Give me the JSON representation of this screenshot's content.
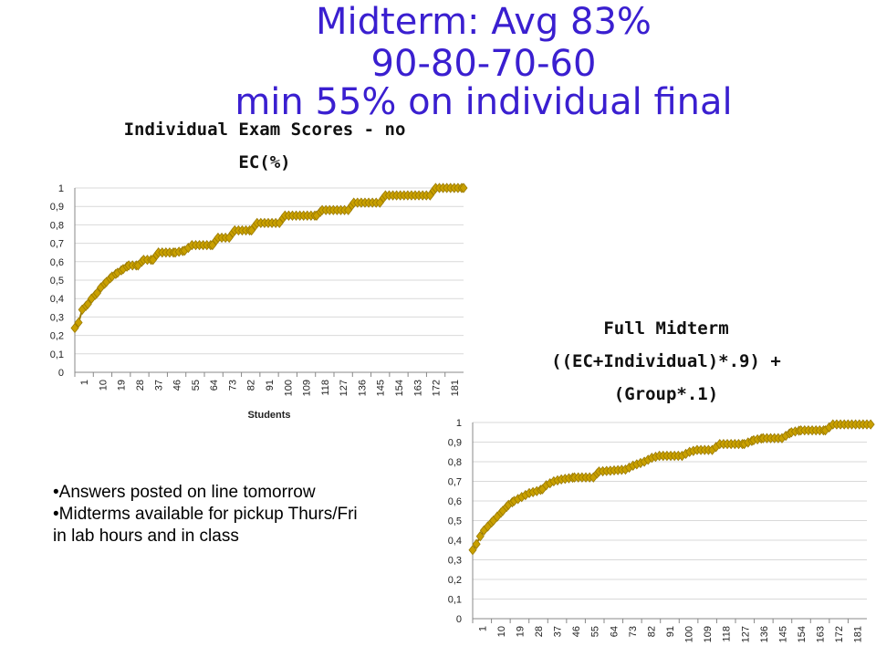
{
  "slide": {
    "title_lines": [
      "Midterm: Avg 83%",
      "90-80-70-60",
      "min 55% on individual final"
    ],
    "bullets": [
      "•Answers posted on line tomorrow",
      "•Midterms available for pickup Thurs/Fri",
      "in lab hours and in class"
    ],
    "colors": {
      "title": "#3a1fd0",
      "series": "#c9a000",
      "series_dark": "#9a7a00",
      "grid": "#d9d9d9"
    }
  },
  "chart_data": [
    {
      "type": "line",
      "title_lines": [
        "Individual Exam Scores - no",
        "EC(%)"
      ],
      "xlabel": "Students",
      "ylabel": "",
      "ylim": [
        0,
        1
      ],
      "y_ticks": [
        "0",
        "0,1",
        "0,2",
        "0,3",
        "0,4",
        "0,5",
        "0,6",
        "0,7",
        "0,8",
        "0,9",
        "1"
      ],
      "x_ticks": [
        "1",
        "10",
        "19",
        "28",
        "37",
        "46",
        "55",
        "64",
        "73",
        "82",
        "91",
        "100",
        "109",
        "118",
        "127",
        "136",
        "145",
        "154",
        "163",
        "172",
        "181"
      ],
      "grid": true,
      "marker": "diamond",
      "series": [
        {
          "points": [
            [
              1,
              0.24
            ],
            [
              3,
              0.27
            ],
            [
              5,
              0.34
            ],
            [
              8,
              0.37
            ],
            [
              10,
              0.4
            ],
            [
              13,
              0.43
            ],
            [
              15,
              0.46
            ],
            [
              18,
              0.49
            ],
            [
              21,
              0.52
            ],
            [
              24,
              0.54
            ],
            [
              27,
              0.56
            ],
            [
              30,
              0.58
            ],
            [
              35,
              0.58
            ],
            [
              38,
              0.61
            ],
            [
              43,
              0.61
            ],
            [
              46,
              0.65
            ],
            [
              55,
              0.65
            ],
            [
              60,
              0.66
            ],
            [
              64,
              0.69
            ],
            [
              75,
              0.69
            ],
            [
              78,
              0.73
            ],
            [
              84,
              0.73
            ],
            [
              87,
              0.77
            ],
            [
              96,
              0.77
            ],
            [
              99,
              0.81
            ],
            [
              111,
              0.81
            ],
            [
              114,
              0.85
            ],
            [
              131,
              0.85
            ],
            [
              134,
              0.88
            ],
            [
              148,
              0.88
            ],
            [
              151,
              0.92
            ],
            [
              165,
              0.92
            ],
            [
              168,
              0.96
            ],
            [
              192,
              0.96
            ],
            [
              195,
              1.0
            ],
            [
              210,
              1.0
            ]
          ]
        }
      ]
    },
    {
      "type": "line",
      "title_lines": [
        "Full Midterm",
        "((EC+Individual)*.9) +",
        "(Group*.1)"
      ],
      "xlabel": "",
      "ylabel": "",
      "ylim": [
        0,
        1
      ],
      "y_ticks": [
        "0",
        "0,1",
        "0,2",
        "0,3",
        "0,4",
        "0,5",
        "0,6",
        "0,7",
        "0,8",
        "0,9",
        "1"
      ],
      "x_ticks": [
        "1",
        "10",
        "19",
        "28",
        "37",
        "46",
        "55",
        "64",
        "73",
        "82",
        "91",
        "100",
        "109",
        "118",
        "127",
        "136",
        "145",
        "154",
        "163",
        "172",
        "181"
      ],
      "grid": true,
      "marker": "diamond",
      "series": [
        {
          "points": [
            [
              1,
              0.35
            ],
            [
              3,
              0.38
            ],
            [
              5,
              0.42
            ],
            [
              7,
              0.45
            ],
            [
              9,
              0.47
            ],
            [
              12,
              0.5
            ],
            [
              14,
              0.52
            ],
            [
              17,
              0.55
            ],
            [
              20,
              0.58
            ],
            [
              23,
              0.6
            ],
            [
              27,
              0.62
            ],
            [
              31,
              0.64
            ],
            [
              35,
              0.65
            ],
            [
              38,
              0.66
            ],
            [
              40,
              0.68
            ],
            [
              44,
              0.7
            ],
            [
              48,
              0.71
            ],
            [
              55,
              0.72
            ],
            [
              65,
              0.72
            ],
            [
              68,
              0.75
            ],
            [
              82,
              0.76
            ],
            [
              86,
              0.78
            ],
            [
              92,
              0.8
            ],
            [
              96,
              0.82
            ],
            [
              100,
              0.83
            ],
            [
              112,
              0.83
            ],
            [
              116,
              0.85
            ],
            [
              120,
              0.86
            ],
            [
              128,
              0.86
            ],
            [
              132,
              0.89
            ],
            [
              145,
              0.89
            ],
            [
              150,
              0.91
            ],
            [
              155,
              0.92
            ],
            [
              165,
              0.92
            ],
            [
              170,
              0.95
            ],
            [
              175,
              0.96
            ],
            [
              188,
              0.96
            ],
            [
              192,
              0.99
            ],
            [
              212,
              0.99
            ]
          ]
        }
      ]
    }
  ]
}
